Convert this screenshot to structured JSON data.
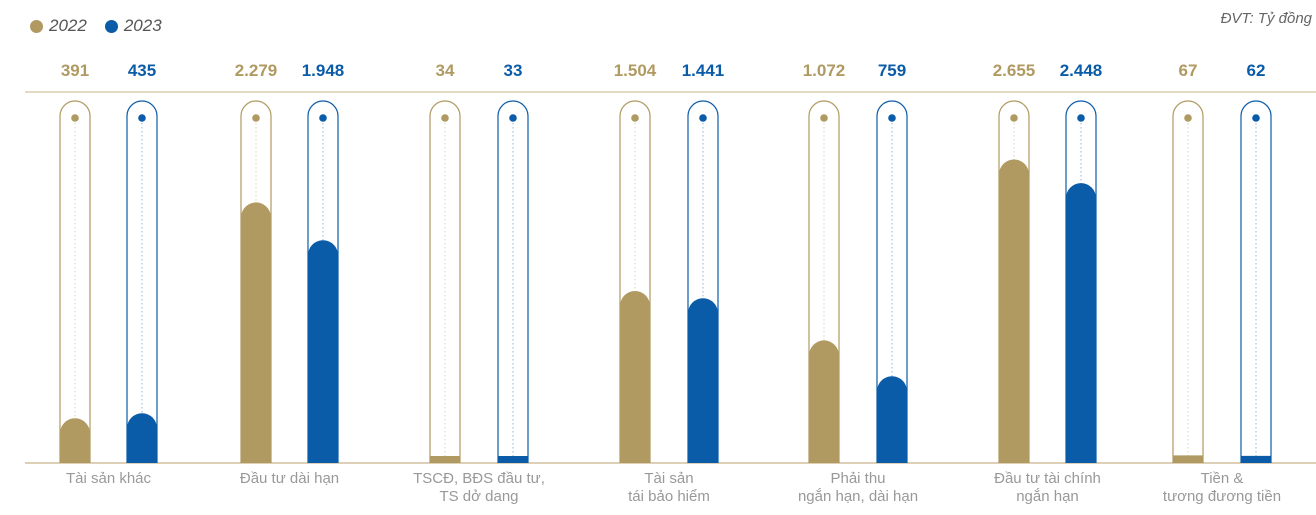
{
  "unit_label": "ĐVT: Tỷ đồng",
  "colors": {
    "y2022": "#b09a62",
    "y2023": "#0b5ca8",
    "axis": "#c9b48a",
    "label": "#999999"
  },
  "chart_data": {
    "type": "bar",
    "unit": "ĐVT: Tỷ đồng",
    "ylim": [
      0,
      3000
    ],
    "legend_position": "top-left",
    "series": [
      {
        "name": "2022",
        "values": [
          391,
          2279,
          34,
          1504,
          1072,
          2655,
          67
        ],
        "labels": [
          "391",
          "2.279",
          "34",
          "1.504",
          "1.072",
          "2.655",
          "67"
        ]
      },
      {
        "name": "2023",
        "values": [
          435,
          1948,
          33,
          1441,
          759,
          2448,
          62
        ],
        "labels": [
          "435",
          "1.948",
          "33",
          "1.441",
          "759",
          "2.448",
          "62"
        ]
      }
    ],
    "categories": [
      [
        "Tài sản khác"
      ],
      [
        "Đầu tư dài hạn"
      ],
      [
        "TSCĐ, BĐS đầu tư,",
        "TS dở dang"
      ],
      [
        "Tài sản",
        "tái bảo hiểm"
      ],
      [
        "Phải thu",
        "ngắn hạn, dài hạn"
      ],
      [
        "Đầu tư tài chính",
        "ngắn hạn"
      ],
      [
        "Tiền &",
        "tương đương tiền"
      ]
    ]
  }
}
